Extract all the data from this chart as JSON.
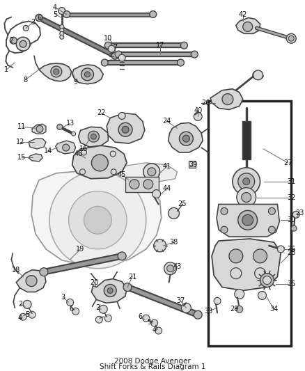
{
  "title": "2008 Dodge Avenger\nShift Forks & Rails Diagram 1",
  "bg_color": "#ffffff",
  "lc": "#444444",
  "lc2": "#666666",
  "fc_light": "#d8d8d8",
  "fc_mid": "#b8b8b8",
  "fc_dark": "#888888",
  "figsize": [
    4.38,
    5.33
  ],
  "dpi": 100
}
